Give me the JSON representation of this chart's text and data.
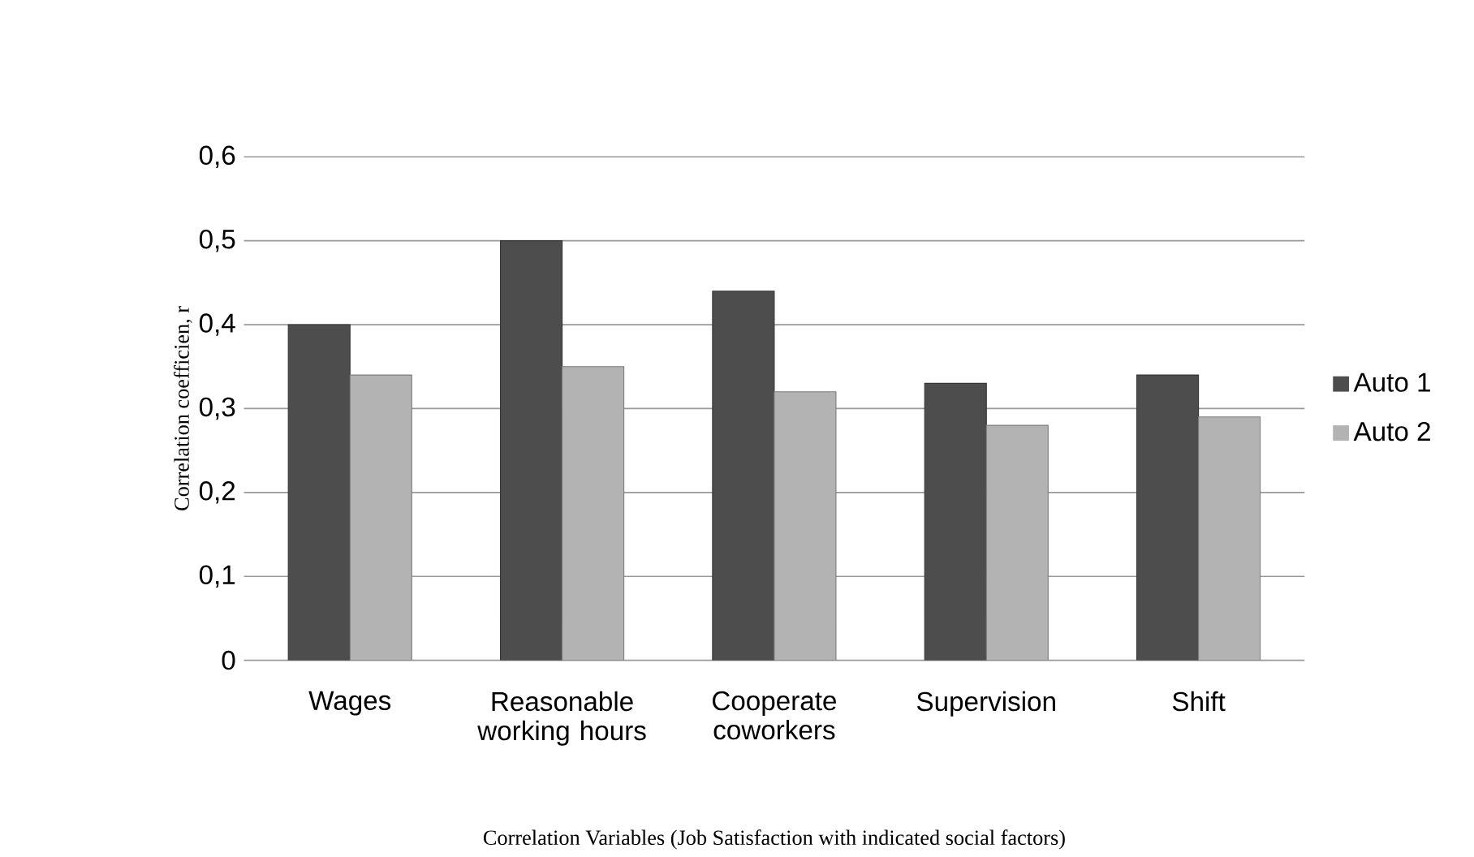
{
  "chart_data": {
    "type": "bar",
    "categories": [
      "Wages",
      "Reasonable working hours",
      "Cooperate coworkers",
      "Supervision",
      "Shift"
    ],
    "series": [
      {
        "name": "Auto 1",
        "color": "#4d4d4d",
        "values": [
          0.4,
          0.5,
          0.44,
          0.33,
          0.34
        ]
      },
      {
        "name": "Auto 2",
        "color": "#b3b3b3",
        "values": [
          0.34,
          0.35,
          0.32,
          0.28,
          0.29
        ]
      }
    ],
    "xlabel": "Correlation Variables (Job Satisfaction with indicated social factors)",
    "ylabel": "Correlation coefficien, r",
    "ylim": [
      0,
      0.6
    ],
    "yticks": [
      0,
      {
        "value": 0.1,
        "label": "0,1"
      },
      {
        "value": 0.2,
        "label": "0,2"
      },
      {
        "value": 0.3,
        "label": "0,3"
      },
      {
        "value": 0.4,
        "label": "0,4"
      },
      {
        "value": 0.5,
        "label": "0,5"
      },
      {
        "value": 0.6,
        "label": "0,6"
      }
    ],
    "grid": "y",
    "legend": "right"
  }
}
